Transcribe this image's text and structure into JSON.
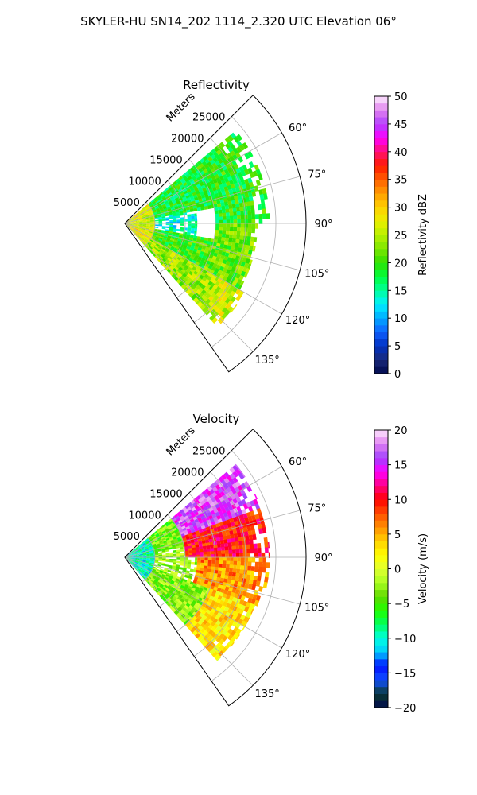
{
  "figure": {
    "title": "SKYLER-HU  SN14_202  1114_2.320 UTC Elevation 06°"
  },
  "colors": {
    "reflectivity_stops": [
      "#000a4d",
      "#1a2a7a",
      "#0030c0",
      "#1060ff",
      "#00a8ff",
      "#00f0ff",
      "#00ff9a",
      "#00ff40",
      "#30e000",
      "#7ce600",
      "#b8f000",
      "#eaf000",
      "#ffd000",
      "#ff9c00",
      "#ff6000",
      "#ff1a00",
      "#ff1070",
      "#ff00ff",
      "#b040ff",
      "#e080ee",
      "#fff0ff"
    ],
    "velocity_stops": [
      "#000a4d",
      "#0a3a30",
      "#1050ff",
      "#0010ff",
      "#00c8ff",
      "#00ffe0",
      "#00ff60",
      "#20ff00",
      "#60d800",
      "#a8ff20",
      "#e0ff30",
      "#ffff00",
      "#ffd000",
      "#ff9000",
      "#ff5000",
      "#ff0000",
      "#ff0080",
      "#ff00ff",
      "#a040ff",
      "#e080f0",
      "#ffe8ff"
    ]
  },
  "chart_data": [
    {
      "type": "heatmap",
      "projection": "polar-sector",
      "title": "Reflectivity",
      "radial_label": "Meters",
      "radial_range": [
        0,
        30000
      ],
      "radial_ticks": [
        5000,
        10000,
        15000,
        20000,
        25000
      ],
      "radial_tick_labels": [
        "5000",
        "10000",
        "15000",
        "20000",
        "25000"
      ],
      "azimuth_range_deg": [
        45,
        145
      ],
      "azimuth_ticks": [
        60,
        75,
        90,
        105,
        120,
        135
      ],
      "azimuth_tick_labels": [
        "60°",
        "75°",
        "90°",
        "105°",
        "120°",
        "135°"
      ],
      "grid": true,
      "colorbar": {
        "label": "Reflectivity dBZ",
        "range": [
          0,
          50
        ],
        "ticks": [
          0,
          5,
          10,
          15,
          20,
          25,
          30,
          35,
          40,
          45,
          50
        ],
        "tick_labels": [
          "0",
          "5",
          "10",
          "15",
          "20",
          "25",
          "30",
          "35",
          "40",
          "45",
          "50"
        ]
      },
      "data_extent": {
        "azimuth_deg": [
          50,
          138
        ],
        "range_m": [
          0,
          24000
        ]
      },
      "field": [
        {
          "az": [
            50,
            70
          ],
          "r": [
            0,
            5000
          ],
          "value": 28
        },
        {
          "az": [
            70,
            110
          ],
          "r": [
            0,
            5000
          ],
          "value": 26
        },
        {
          "az": [
            110,
            138
          ],
          "r": [
            0,
            5000
          ],
          "value": 28
        },
        {
          "az": [
            50,
            80
          ],
          "r": [
            5000,
            15000
          ],
          "value": 18
        },
        {
          "az": [
            80,
            100
          ],
          "r": [
            5000,
            12000
          ],
          "value": 14
        },
        {
          "az": [
            100,
            120
          ],
          "r": [
            5000,
            15000
          ],
          "value": 20
        },
        {
          "az": [
            120,
            138
          ],
          "r": [
            5000,
            18000
          ],
          "value": 24
        },
        {
          "az": [
            50,
            90
          ],
          "r": [
            15000,
            24000
          ],
          "value": 19
        },
        {
          "az": [
            90,
            120
          ],
          "r": [
            15000,
            22000
          ],
          "value": 22
        },
        {
          "az": [
            120,
            138
          ],
          "r": [
            18000,
            23000
          ],
          "value": 26
        }
      ]
    },
    {
      "type": "heatmap",
      "projection": "polar-sector",
      "title": "Velocity",
      "radial_label": "Meters",
      "radial_range": [
        0,
        30000
      ],
      "radial_ticks": [
        5000,
        10000,
        15000,
        20000,
        25000
      ],
      "radial_tick_labels": [
        "5000",
        "10000",
        "15000",
        "20000",
        "25000"
      ],
      "azimuth_range_deg": [
        45,
        145
      ],
      "azimuth_ticks": [
        60,
        75,
        90,
        105,
        120,
        135
      ],
      "azimuth_tick_labels": [
        "60°",
        "75°",
        "90°",
        "105°",
        "120°",
        "135°"
      ],
      "grid": true,
      "colorbar": {
        "label": "Velocity (m/s)",
        "range": [
          -20,
          20
        ],
        "ticks": [
          -20,
          -15,
          -10,
          -5,
          0,
          5,
          10,
          15,
          20
        ],
        "tick_labels": [
          "−20",
          "−15",
          "−10",
          "−5",
          "0",
          "5",
          "10",
          "15",
          "20"
        ]
      },
      "data_extent": {
        "azimuth_deg": [
          50,
          138
        ],
        "range_m": [
          0,
          24000
        ]
      },
      "field": [
        {
          "az": [
            50,
            138
          ],
          "r": [
            0,
            5000
          ],
          "value": -10
        },
        {
          "az": [
            50,
            80
          ],
          "r": [
            5000,
            10000
          ],
          "value": -4
        },
        {
          "az": [
            80,
            110
          ],
          "r": [
            5000,
            12000
          ],
          "value": -2
        },
        {
          "az": [
            110,
            138
          ],
          "r": [
            5000,
            15000
          ],
          "value": -3
        },
        {
          "az": [
            50,
            70
          ],
          "r": [
            10000,
            24000
          ],
          "value": 16
        },
        {
          "az": [
            70,
            90
          ],
          "r": [
            10000,
            24000
          ],
          "value": 10
        },
        {
          "az": [
            90,
            110
          ],
          "r": [
            12000,
            24000
          ],
          "value": 6
        },
        {
          "az": [
            110,
            138
          ],
          "r": [
            15000,
            23000
          ],
          "value": 3
        }
      ]
    }
  ]
}
